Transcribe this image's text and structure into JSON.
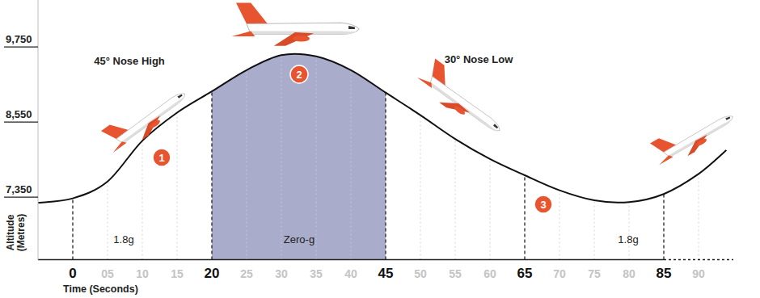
{
  "chart_data": {
    "type": "line",
    "x_label": "Time (Seconds)",
    "y_label": "Altitude (Metres)",
    "x": [
      -5,
      0,
      5,
      10,
      15,
      20,
      25,
      30,
      35,
      40,
      45,
      50,
      55,
      60,
      65,
      70,
      75,
      80,
      85,
      90,
      94
    ],
    "values": [
      7260,
      7330,
      7600,
      8250,
      8700,
      9040,
      9380,
      9620,
      9600,
      9380,
      9020,
      8660,
      8280,
      7960,
      7700,
      7460,
      7300,
      7270,
      7400,
      7720,
      8100
    ],
    "color": "#111111",
    "xlim": [
      -5,
      95
    ],
    "xticks": [
      0,
      {
        "value": 5,
        "label": "05"
      },
      10,
      15,
      20,
      25,
      30,
      35,
      40,
      45,
      50,
      55,
      60,
      65,
      70,
      75,
      80,
      85,
      90
    ],
    "ylim": [
      6350,
      10500
    ],
    "yticks": [
      {
        "value": 7350,
        "label": "7,350"
      },
      {
        "value": 8550,
        "label": "8,550"
      },
      {
        "value": 9750,
        "label": "9,750"
      }
    ],
    "grid": true,
    "phase_boundaries": [
      0,
      20,
      45,
      65,
      85
    ],
    "zero_g_range": [
      20,
      45
    ],
    "phase_markers": [
      1,
      2,
      3
    ],
    "annotations": {
      "nose_high": "45° Nose High",
      "nose_low": "30° Nose Low",
      "pull_up": "1.8g",
      "zero_g": "Zero-g",
      "pull_out": "1.8g"
    }
  }
}
